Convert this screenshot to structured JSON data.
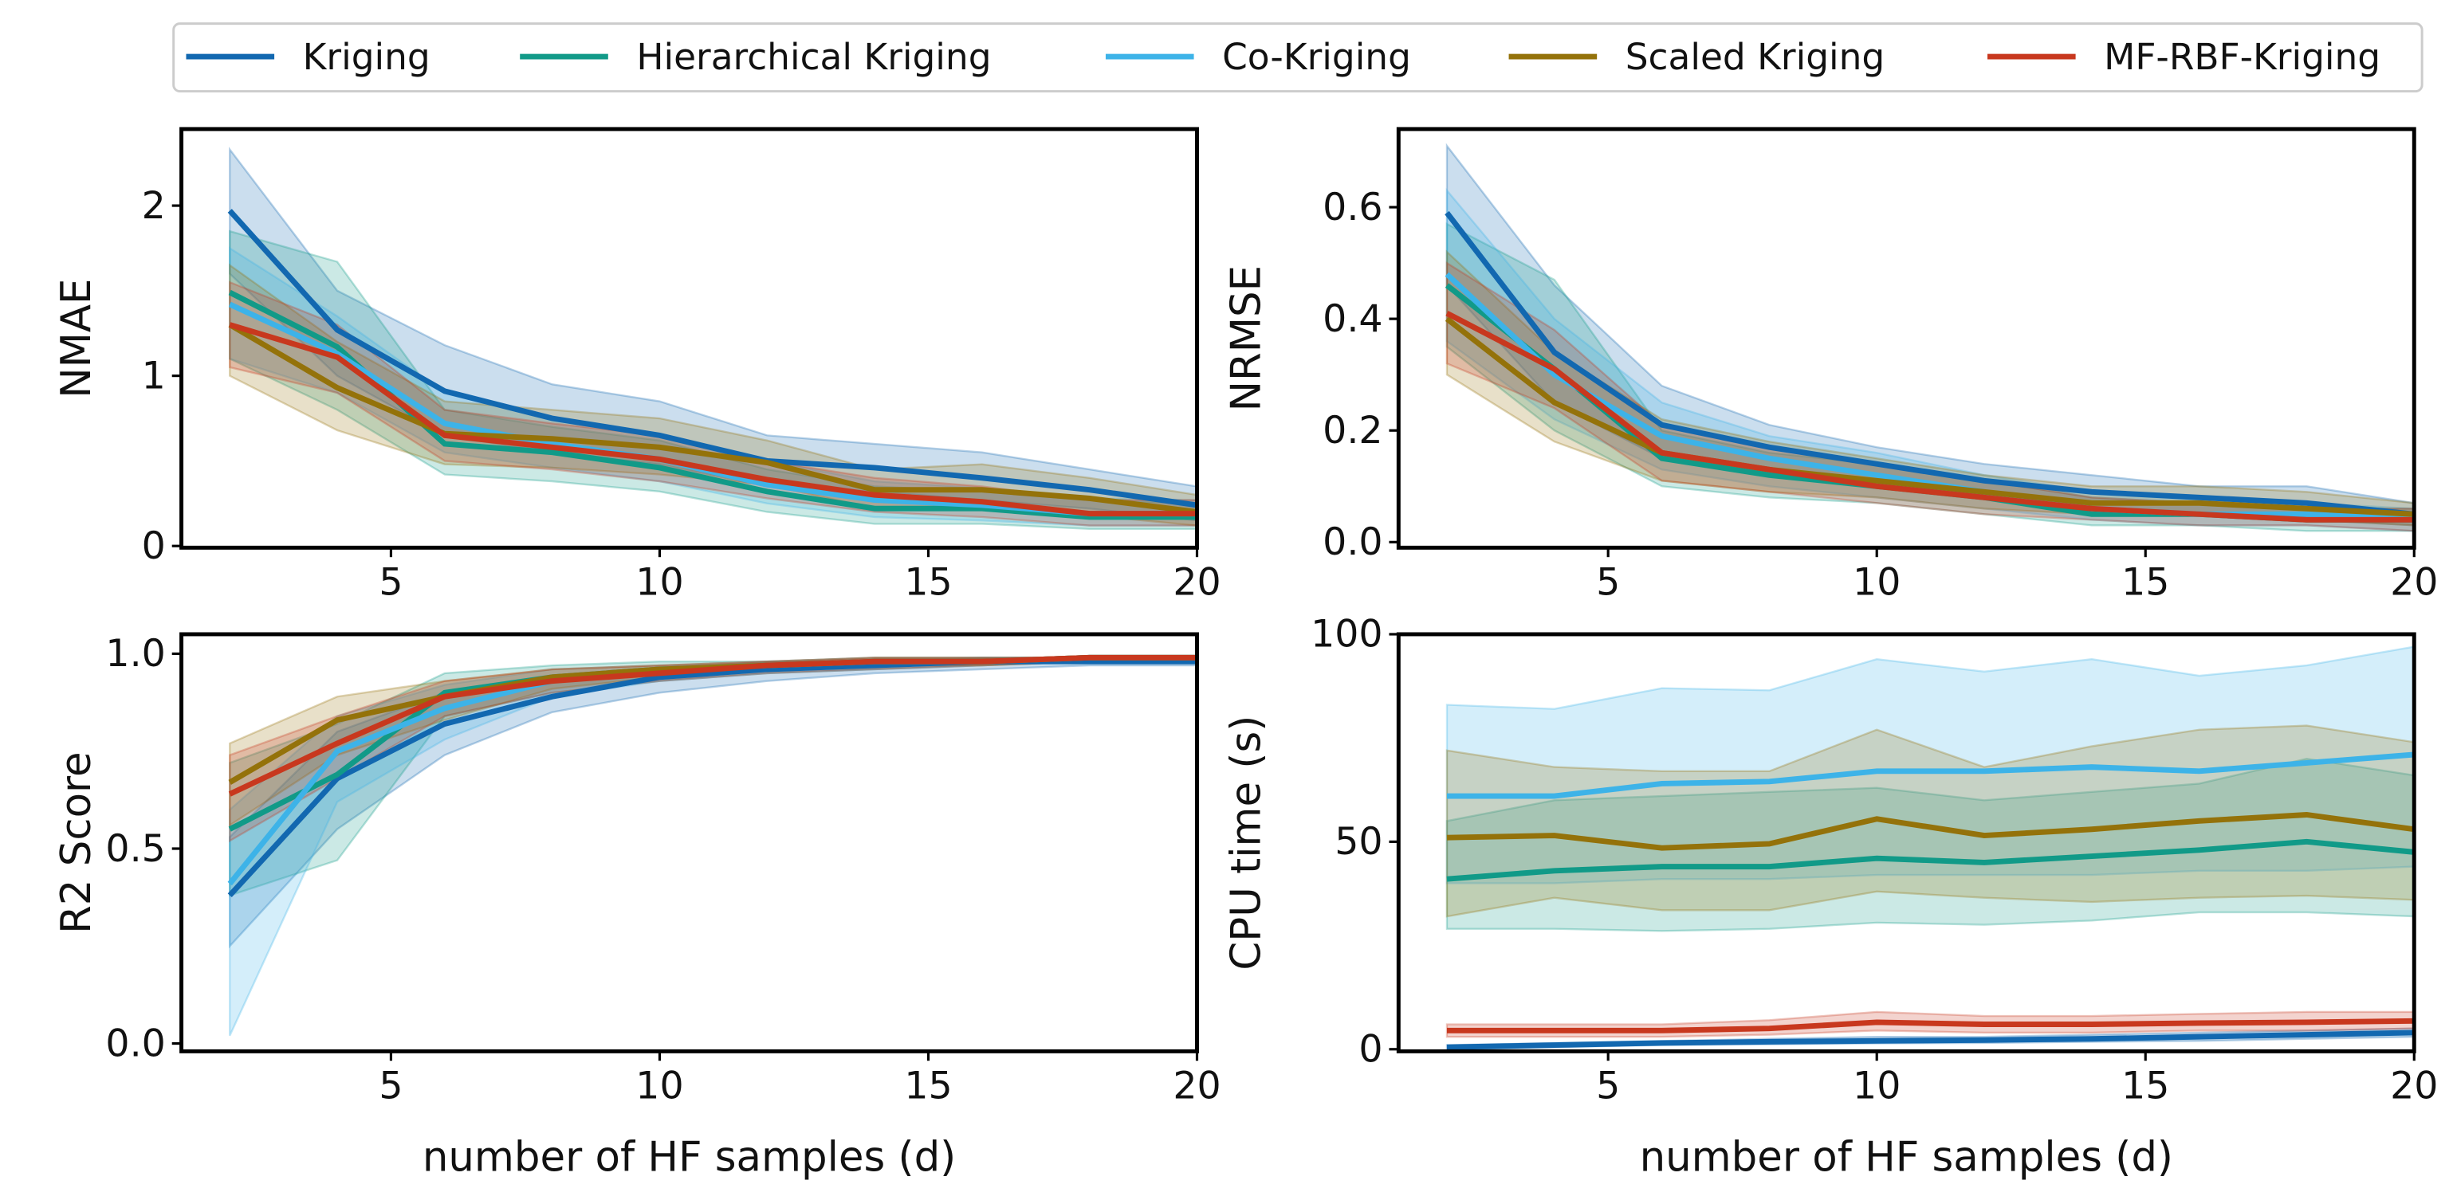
{
  "chart_data": [
    {
      "type": "line",
      "ylabel": "NMAE",
      "x": [
        2,
        4,
        6,
        8,
        10,
        12,
        14,
        16,
        18,
        20
      ],
      "xlim": [
        1.1,
        20
      ],
      "xticks": [
        5,
        10,
        15,
        20
      ],
      "ylim": [
        -0.01,
        2.45
      ],
      "yticks": [
        0,
        1,
        2
      ],
      "series": [
        {
          "name": "Kriging",
          "color": "#1268b0",
          "values": [
            1.97,
            1.27,
            0.91,
            0.75,
            0.65,
            0.5,
            0.46,
            0.4,
            0.33,
            0.24
          ],
          "upper": [
            2.33,
            1.5,
            1.18,
            0.95,
            0.85,
            0.65,
            0.6,
            0.55,
            0.45,
            0.35
          ],
          "lower": [
            1.6,
            1.0,
            0.65,
            0.55,
            0.48,
            0.35,
            0.32,
            0.27,
            0.22,
            0.15
          ]
        },
        {
          "name": "Hierarchical Kriging",
          "color": "#119a88",
          "values": [
            1.49,
            1.17,
            0.6,
            0.55,
            0.46,
            0.32,
            0.22,
            0.22,
            0.17,
            0.17
          ],
          "upper": [
            1.85,
            1.67,
            0.8,
            0.7,
            0.62,
            0.45,
            0.35,
            0.32,
            0.27,
            0.25
          ],
          "lower": [
            1.1,
            0.8,
            0.42,
            0.38,
            0.32,
            0.2,
            0.13,
            0.13,
            0.1,
            0.1
          ]
        },
        {
          "name": "Co-Kriging",
          "color": "#3db3e8",
          "values": [
            1.42,
            1.13,
            0.72,
            0.6,
            0.51,
            0.36,
            0.27,
            0.24,
            0.19,
            0.19
          ],
          "upper": [
            1.75,
            1.35,
            0.9,
            0.75,
            0.66,
            0.5,
            0.38,
            0.34,
            0.28,
            0.27
          ],
          "lower": [
            1.1,
            0.9,
            0.55,
            0.46,
            0.38,
            0.25,
            0.17,
            0.15,
            0.12,
            0.12
          ]
        },
        {
          "name": "Scaled Kriging",
          "color": "#94720a",
          "values": [
            1.3,
            0.93,
            0.66,
            0.63,
            0.58,
            0.49,
            0.33,
            0.33,
            0.28,
            0.2
          ],
          "upper": [
            1.65,
            1.2,
            0.85,
            0.8,
            0.75,
            0.62,
            0.45,
            0.48,
            0.4,
            0.3
          ],
          "lower": [
            1.0,
            0.68,
            0.48,
            0.46,
            0.42,
            0.36,
            0.22,
            0.22,
            0.18,
            0.12
          ]
        },
        {
          "name": "MF-RBF-Kriging",
          "color": "#c8381e",
          "values": [
            1.3,
            1.11,
            0.65,
            0.58,
            0.51,
            0.39,
            0.3,
            0.26,
            0.19,
            0.19
          ],
          "upper": [
            1.55,
            1.3,
            0.8,
            0.72,
            0.65,
            0.5,
            0.4,
            0.35,
            0.27,
            0.27
          ],
          "lower": [
            1.05,
            0.9,
            0.5,
            0.45,
            0.38,
            0.28,
            0.2,
            0.17,
            0.12,
            0.12
          ]
        }
      ]
    },
    {
      "type": "line",
      "ylabel": "NRMSE",
      "x": [
        2,
        4,
        6,
        8,
        10,
        12,
        14,
        16,
        18,
        20
      ],
      "xlim": [
        1.1,
        20
      ],
      "xticks": [
        5,
        10,
        15,
        20
      ],
      "ylim": [
        -0.01,
        0.74
      ],
      "yticks": [
        {
          "value": 0,
          "label": "0.0"
        },
        {
          "value": 0.2,
          "label": "0.2"
        },
        {
          "value": 0.4,
          "label": "0.4"
        },
        {
          "value": 0.6,
          "label": "0.6"
        }
      ],
      "series": [
        {
          "name": "Kriging",
          "color": "#1268b0",
          "values": [
            0.59,
            0.34,
            0.21,
            0.17,
            0.14,
            0.11,
            0.09,
            0.08,
            0.07,
            0.05
          ],
          "upper": [
            0.71,
            0.46,
            0.28,
            0.21,
            0.17,
            0.14,
            0.12,
            0.1,
            0.1,
            0.07
          ],
          "lower": [
            0.46,
            0.25,
            0.15,
            0.12,
            0.1,
            0.08,
            0.06,
            0.05,
            0.04,
            0.03
          ]
        },
        {
          "name": "Hierarchical Kriging",
          "color": "#119a88",
          "values": [
            0.46,
            0.31,
            0.15,
            0.12,
            0.1,
            0.08,
            0.05,
            0.05,
            0.04,
            0.04
          ],
          "upper": [
            0.57,
            0.47,
            0.2,
            0.16,
            0.14,
            0.11,
            0.08,
            0.07,
            0.06,
            0.06
          ],
          "lower": [
            0.35,
            0.2,
            0.1,
            0.08,
            0.07,
            0.05,
            0.03,
            0.03,
            0.02,
            0.02
          ]
        },
        {
          "name": "Co-Kriging",
          "color": "#3db3e8",
          "values": [
            0.48,
            0.3,
            0.19,
            0.15,
            0.12,
            0.09,
            0.06,
            0.05,
            0.05,
            0.04
          ],
          "upper": [
            0.63,
            0.4,
            0.25,
            0.19,
            0.16,
            0.12,
            0.09,
            0.08,
            0.07,
            0.06
          ],
          "lower": [
            0.36,
            0.22,
            0.13,
            0.1,
            0.08,
            0.06,
            0.04,
            0.03,
            0.03,
            0.02
          ]
        },
        {
          "name": "Scaled Kriging",
          "color": "#94720a",
          "values": [
            0.4,
            0.25,
            0.16,
            0.13,
            0.11,
            0.09,
            0.07,
            0.07,
            0.06,
            0.05
          ],
          "upper": [
            0.52,
            0.34,
            0.22,
            0.18,
            0.15,
            0.12,
            0.1,
            0.1,
            0.09,
            0.07
          ],
          "lower": [
            0.3,
            0.18,
            0.11,
            0.09,
            0.08,
            0.06,
            0.05,
            0.05,
            0.04,
            0.03
          ]
        },
        {
          "name": "MF-RBF-Kriging",
          "color": "#c8381e",
          "values": [
            0.41,
            0.31,
            0.16,
            0.13,
            0.1,
            0.08,
            0.06,
            0.05,
            0.04,
            0.04
          ],
          "upper": [
            0.5,
            0.38,
            0.21,
            0.17,
            0.14,
            0.11,
            0.08,
            0.07,
            0.06,
            0.06
          ],
          "lower": [
            0.32,
            0.24,
            0.11,
            0.09,
            0.07,
            0.05,
            0.04,
            0.03,
            0.03,
            0.02
          ]
        }
      ]
    },
    {
      "type": "line",
      "ylabel": "R2 Score",
      "xlabel": "number of HF samples (d)",
      "x": [
        2,
        4,
        6,
        8,
        10,
        12,
        14,
        16,
        18,
        20
      ],
      "xlim": [
        1.1,
        20
      ],
      "xticks": [
        5,
        10,
        15,
        20
      ],
      "ylim": [
        -0.02,
        1.05
      ],
      "yticks": [
        {
          "value": 0,
          "label": "0.0"
        },
        {
          "value": 0.5,
          "label": "0.5"
        },
        {
          "value": 1,
          "label": "1.0"
        }
      ],
      "series": [
        {
          "name": "Kriging",
          "color": "#1268b0",
          "values": [
            0.38,
            0.68,
            0.82,
            0.89,
            0.94,
            0.96,
            0.97,
            0.98,
            0.98,
            0.98
          ],
          "upper": [
            0.53,
            0.8,
            0.9,
            0.94,
            0.96,
            0.98,
            0.98,
            0.99,
            0.99,
            0.99
          ],
          "lower": [
            0.25,
            0.55,
            0.74,
            0.85,
            0.9,
            0.93,
            0.95,
            0.96,
            0.97,
            0.97
          ]
        },
        {
          "name": "Hierarchical Kriging",
          "color": "#119a88",
          "values": [
            0.55,
            0.69,
            0.9,
            0.94,
            0.96,
            0.97,
            0.98,
            0.98,
            0.99,
            0.99
          ],
          "upper": [
            0.72,
            0.82,
            0.95,
            0.97,
            0.98,
            0.98,
            0.99,
            0.99,
            0.99,
            0.99
          ],
          "lower": [
            0.38,
            0.47,
            0.84,
            0.9,
            0.93,
            0.95,
            0.96,
            0.97,
            0.98,
            0.98
          ]
        },
        {
          "name": "Co-Kriging",
          "color": "#3db3e8",
          "values": [
            0.41,
            0.75,
            0.86,
            0.93,
            0.96,
            0.97,
            0.98,
            0.98,
            0.99,
            0.99
          ],
          "upper": [
            0.6,
            0.84,
            0.92,
            0.96,
            0.97,
            0.98,
            0.99,
            0.99,
            0.99,
            0.99
          ],
          "lower": [
            0.02,
            0.62,
            0.78,
            0.89,
            0.93,
            0.95,
            0.96,
            0.97,
            0.98,
            0.98
          ]
        },
        {
          "name": "Scaled Kriging",
          "color": "#94720a",
          "values": [
            0.67,
            0.83,
            0.89,
            0.94,
            0.96,
            0.97,
            0.98,
            0.98,
            0.99,
            0.99
          ],
          "upper": [
            0.77,
            0.89,
            0.93,
            0.96,
            0.97,
            0.98,
            0.99,
            0.99,
            0.99,
            0.99
          ],
          "lower": [
            0.56,
            0.74,
            0.83,
            0.91,
            0.94,
            0.96,
            0.97,
            0.97,
            0.98,
            0.98
          ]
        },
        {
          "name": "MF-RBF-Kriging",
          "color": "#c8381e",
          "values": [
            0.64,
            0.77,
            0.89,
            0.93,
            0.95,
            0.97,
            0.98,
            0.98,
            0.99,
            0.99
          ],
          "upper": [
            0.74,
            0.84,
            0.93,
            0.96,
            0.97,
            0.98,
            0.99,
            0.99,
            0.99,
            0.99
          ],
          "lower": [
            0.52,
            0.68,
            0.84,
            0.9,
            0.93,
            0.95,
            0.96,
            0.97,
            0.98,
            0.98
          ]
        }
      ]
    },
    {
      "type": "line",
      "ylabel": "CPU time (s)",
      "xlabel": "number of HF samples (d)",
      "x": [
        2,
        4,
        6,
        8,
        10,
        12,
        14,
        16,
        18,
        20
      ],
      "xlim": [
        1.1,
        20
      ],
      "xticks": [
        5,
        10,
        15,
        20
      ],
      "ylim": [
        -0.5,
        100
      ],
      "yticks": [
        0,
        50,
        100
      ],
      "series": [
        {
          "name": "Kriging",
          "color": "#1268b0",
          "values": [
            0.5,
            1,
            1.5,
            1.8,
            2,
            2.2,
            2.5,
            3,
            3.5,
            4
          ],
          "upper": [
            1,
            1.5,
            2,
            2.5,
            3,
            3,
            3.5,
            4,
            4.5,
            5
          ],
          "lower": [
            0,
            0.5,
            1,
            1.2,
            1.4,
            1.5,
            1.8,
            2,
            2.5,
            3
          ]
        },
        {
          "name": "Hierarchical Kriging",
          "color": "#119a88",
          "values": [
            41,
            43,
            44,
            44,
            46,
            45,
            46.5,
            48,
            50,
            47.5
          ],
          "upper": [
            55,
            60,
            61,
            62,
            63,
            60,
            62,
            64,
            70,
            66
          ],
          "lower": [
            29,
            29,
            28.5,
            29,
            30.5,
            30,
            31,
            33,
            33,
            32
          ]
        },
        {
          "name": "Co-Kriging",
          "color": "#3db3e8",
          "values": [
            61,
            61,
            64,
            64.5,
            67,
            67,
            68,
            67,
            69,
            71
          ],
          "upper": [
            83,
            82,
            87,
            86.5,
            94,
            91,
            94,
            90,
            92.5,
            97
          ],
          "lower": [
            40,
            40,
            41,
            41,
            42,
            42,
            42,
            43,
            43,
            44
          ]
        },
        {
          "name": "Scaled Kriging",
          "color": "#94720a",
          "values": [
            51,
            51.5,
            48.5,
            49.5,
            55.5,
            51.5,
            53,
            55,
            56.5,
            53
          ],
          "upper": [
            72,
            68,
            67,
            67,
            77,
            68,
            73,
            77,
            78,
            74
          ],
          "lower": [
            32,
            36.5,
            33.5,
            33.5,
            38,
            36.5,
            35.5,
            36.5,
            37,
            36
          ]
        },
        {
          "name": "MF-RBF-Kriging",
          "color": "#c8381e",
          "values": [
            4.5,
            4.5,
            4.5,
            5,
            6.5,
            6,
            6,
            6.3,
            6.5,
            6.8
          ],
          "upper": [
            6,
            6,
            6,
            7,
            9,
            8,
            8,
            8.5,
            9,
            9
          ],
          "lower": [
            3,
            3,
            3,
            3.5,
            4.5,
            4,
            4,
            4.5,
            4.5,
            5
          ]
        }
      ]
    }
  ]
}
